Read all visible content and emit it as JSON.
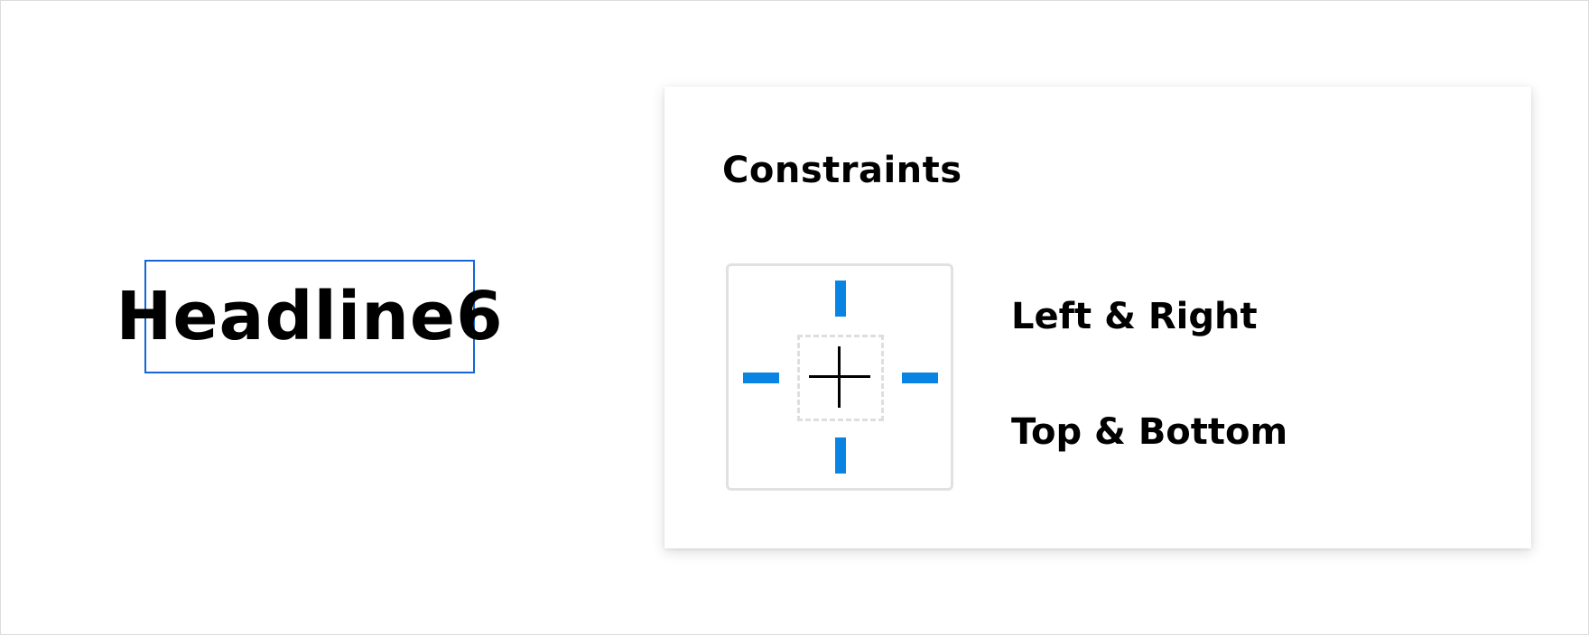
{
  "canvas": {
    "selected_text": "Headline6"
  },
  "constraints_panel": {
    "title": "Constraints",
    "horizontal_option": "Left & Right",
    "vertical_option": "Top & Bottom"
  },
  "colors": {
    "selection_outline": "#1565d8",
    "constraint_active": "#0a84e3",
    "widget_border": "#e1e1e1"
  },
  "icons": {
    "center": "crosshair-icon"
  }
}
